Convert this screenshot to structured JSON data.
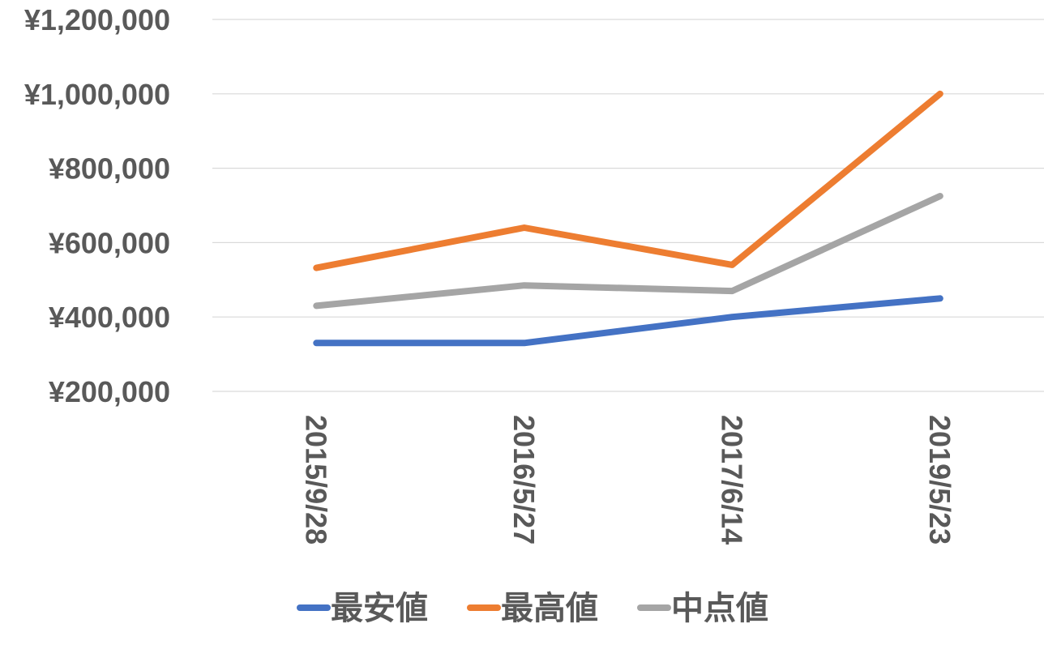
{
  "chart_data": {
    "type": "line",
    "title": "",
    "xlabel": "",
    "ylabel": "",
    "categories": [
      "2015/9/28",
      "2016/5/27",
      "2017/6/14",
      "2019/5/23"
    ],
    "y_tick_labels": [
      "¥200,000",
      "¥400,000",
      "¥600,000",
      "¥800,000",
      "¥1,000,000",
      "¥1,200,000"
    ],
    "ylim": [
      200000,
      1200000
    ],
    "grid": true,
    "legend_position": "bottom",
    "series": [
      {
        "name": "最安値",
        "color": "#4472C4",
        "values": [
          330000,
          330000,
          400000,
          450000
        ]
      },
      {
        "name": "最高値",
        "color": "#ED7D31",
        "values": [
          532000,
          640000,
          540000,
          1000000
        ]
      },
      {
        "name": "中点値",
        "color": "#A5A5A5",
        "values": [
          430000,
          485000,
          470000,
          725000
        ]
      }
    ]
  }
}
